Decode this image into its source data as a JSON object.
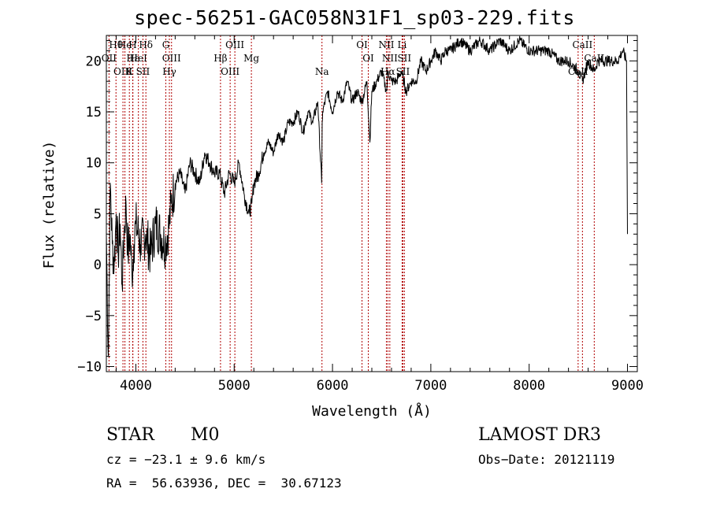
{
  "chart_data": {
    "type": "line",
    "title": "spec-56251-GAC058N31F1_sp03-229.fits",
    "xlabel": "Wavelength (Å)",
    "ylabel": "Flux (relative)",
    "xlim": [
      3700,
      9100
    ],
    "ylim": [
      -10.5,
      22.5
    ],
    "x_ticks": [
      4000,
      5000,
      6000,
      7000,
      8000,
      9000
    ],
    "x_tick_labels": [
      "4000",
      "5000",
      "6000",
      "7000",
      "8000",
      "9000"
    ],
    "y_ticks": [
      -10,
      -5,
      0,
      5,
      10,
      15,
      20
    ],
    "y_tick_labels": [
      "−10",
      "−5",
      "0",
      "5",
      "10",
      "15",
      "20"
    ],
    "series": [
      {
        "name": "flux",
        "x": [
          3700,
          3720,
          3740,
          3760,
          3780,
          3800,
          3820,
          3840,
          3860,
          3880,
          3900,
          3920,
          3940,
          3960,
          3980,
          4000,
          4050,
          4100,
          4150,
          4200,
          4250,
          4300,
          4340,
          4360,
          4400,
          4450,
          4500,
          4550,
          4600,
          4650,
          4700,
          4750,
          4800,
          4850,
          4900,
          4950,
          5000,
          5050,
          5100,
          5150,
          5180,
          5200,
          5250,
          5300,
          5350,
          5400,
          5450,
          5500,
          5550,
          5600,
          5650,
          5700,
          5750,
          5800,
          5850,
          5890,
          5895,
          5900,
          5950,
          6000,
          6050,
          6100,
          6150,
          6200,
          6250,
          6300,
          6350,
          6380,
          6400,
          6450,
          6500,
          6550,
          6563,
          6600,
          6650,
          6700,
          6750,
          6800,
          6850,
          6900,
          6950,
          7000,
          7050,
          7100,
          7150,
          7200,
          7300,
          7400,
          7500,
          7600,
          7700,
          7800,
          7900,
          8000,
          8100,
          8200,
          8300,
          8400,
          8498,
          8542,
          8600,
          8662,
          8700,
          8800,
          8900,
          8950,
          8990,
          9000
        ],
        "values": [
          3,
          -9,
          8,
          2,
          0,
          5,
          1,
          4,
          -2,
          3,
          6,
          1,
          3,
          -1,
          2,
          4,
          2,
          3,
          1,
          4,
          3,
          2,
          4,
          6,
          8,
          9,
          7,
          10,
          9,
          8,
          11,
          10,
          9,
          9,
          7,
          9,
          8,
          10,
          7,
          5,
          6,
          8,
          9,
          11,
          12,
          11,
          13,
          12,
          14,
          14,
          15,
          13,
          15,
          14,
          16,
          8,
          14,
          15,
          17,
          15,
          17,
          16,
          18,
          16,
          17,
          16,
          18,
          12,
          17,
          18,
          19,
          17,
          19,
          18,
          18,
          19,
          17,
          18,
          18,
          20,
          19,
          20,
          21,
          20,
          21,
          21,
          22,
          21,
          22,
          21,
          22,
          21,
          22,
          21,
          21,
          21,
          20,
          20,
          19,
          18,
          20,
          19,
          20,
          20,
          20,
          21,
          20,
          3
        ]
      }
    ],
    "line_markers": [
      {
        "label": "Hθ",
        "x": 3798
      },
      {
        "label": "OII",
        "x": 3727
      },
      {
        "label": "OIII",
        "x": 3869
      },
      {
        "label": "He",
        "x": 3889
      },
      {
        "label": "Hε",
        "x": 3970
      },
      {
        "label": "K",
        "x": 3934
      },
      {
        "label": "H",
        "x": 3968
      },
      {
        "label": "HeI",
        "x": 4026
      },
      {
        "label": "SII",
        "x": 4072
      },
      {
        "label": "Hδ",
        "x": 4102
      },
      {
        "label": "OIII",
        "x": 4363
      },
      {
        "label": "Hγ",
        "x": 4341
      },
      {
        "label": "G",
        "x": 4305
      },
      {
        "label": "Hβ",
        "x": 4861
      },
      {
        "label": "OIII",
        "x": 4959
      },
      {
        "label": "OIII",
        "x": 5007
      },
      {
        "label": "Mg",
        "x": 5175
      },
      {
        "label": "Na",
        "x": 5893
      },
      {
        "label": "OI",
        "x": 6300
      },
      {
        "label": "OI",
        "x": 6364
      },
      {
        "label": "Hα",
        "x": 6563
      },
      {
        "label": "NII",
        "x": 6548
      },
      {
        "label": "NII",
        "x": 6583
      },
      {
        "label": "SII",
        "x": 6716
      },
      {
        "label": "Li",
        "x": 6708
      },
      {
        "label": "SII",
        "x": 6731
      },
      {
        "label": "CaII",
        "x": 8498
      },
      {
        "label": "CaII",
        "x": 8542
      },
      {
        "label": "CaII",
        "x": 8662
      }
    ]
  },
  "info": {
    "class": "STAR",
    "subclass": "M0",
    "survey": "LAMOST DR3",
    "cz": "cz = −23.1 ± 9.6 km/s",
    "obs_date": "Obs−Date: 20121119",
    "radec": "RA =  56.63936, DEC =  30.67123"
  },
  "colors": {
    "axis": "#000000",
    "spectrum": "#000000",
    "marker_line": "#b00000"
  }
}
